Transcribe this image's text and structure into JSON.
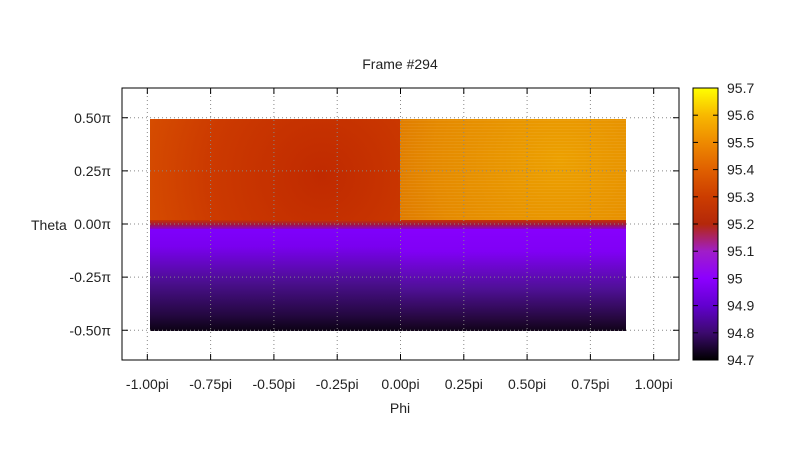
{
  "chart_data": {
    "type": "heatmap",
    "title": "Frame #294",
    "xlabel": "Phi",
    "ylabel": "Theta",
    "xlim": [
      -1.1,
      1.1
    ],
    "ylim": [
      -0.64,
      0.64
    ],
    "x_ticks": [
      {
        "value": -1.0,
        "label": "-1.00pi"
      },
      {
        "value": -0.75,
        "label": "-0.75pi"
      },
      {
        "value": -0.5,
        "label": "-0.50pi"
      },
      {
        "value": -0.25,
        "label": "-0.25pi"
      },
      {
        "value": 0.0,
        "label": "0.00pi"
      },
      {
        "value": 0.25,
        "label": "0.25pi"
      },
      {
        "value": 0.5,
        "label": "0.50pi"
      },
      {
        "value": 0.75,
        "label": "0.75pi"
      },
      {
        "value": 1.0,
        "label": "1.00pi"
      }
    ],
    "y_ticks": [
      {
        "value": 0.5,
        "label": "0.50π"
      },
      {
        "value": 0.25,
        "label": "0.25π"
      },
      {
        "value": 0.0,
        "label": "0.00π"
      },
      {
        "value": -0.25,
        "label": "-0.25π"
      },
      {
        "value": -0.5,
        "label": "-0.50π"
      }
    ],
    "grid": true,
    "data_extent": {
      "x": [
        -1.0,
        0.9
      ],
      "y": [
        -0.5,
        0.5
      ]
    },
    "colorbar": {
      "range": [
        94.7,
        95.7
      ],
      "ticks": [
        "95.7",
        "95.6",
        "95.5",
        "95.4",
        "95.3",
        "95.2",
        "95.1",
        "95",
        "94.9",
        "94.8",
        "94.7"
      ],
      "palette": [
        "#000000",
        "#3c0a6e",
        "#6200cf",
        "#8c00ff",
        "#a01ec8",
        "#b4280a",
        "#cc3d00",
        "#e06000",
        "#ee8a00",
        "#f8b800",
        "#ffff00"
      ]
    },
    "regions": [
      {
        "name": "upper-left",
        "x": [
          -1.0,
          0.0
        ],
        "y": [
          0.0,
          0.5
        ],
        "value_range": [
          95.2,
          95.4
        ]
      },
      {
        "name": "upper-right",
        "x": [
          0.0,
          0.9
        ],
        "y": [
          0.0,
          0.5
        ],
        "value_range": [
          95.4,
          95.6
        ]
      },
      {
        "name": "lower-left",
        "x": [
          -1.0,
          0.0
        ],
        "y": [
          -0.5,
          0.0
        ],
        "value_range": [
          94.7,
          94.95
        ]
      },
      {
        "name": "lower-right",
        "x": [
          0.0,
          0.9
        ],
        "y": [
          -0.5,
          0.0
        ],
        "value_range": [
          94.7,
          94.95
        ]
      }
    ]
  }
}
